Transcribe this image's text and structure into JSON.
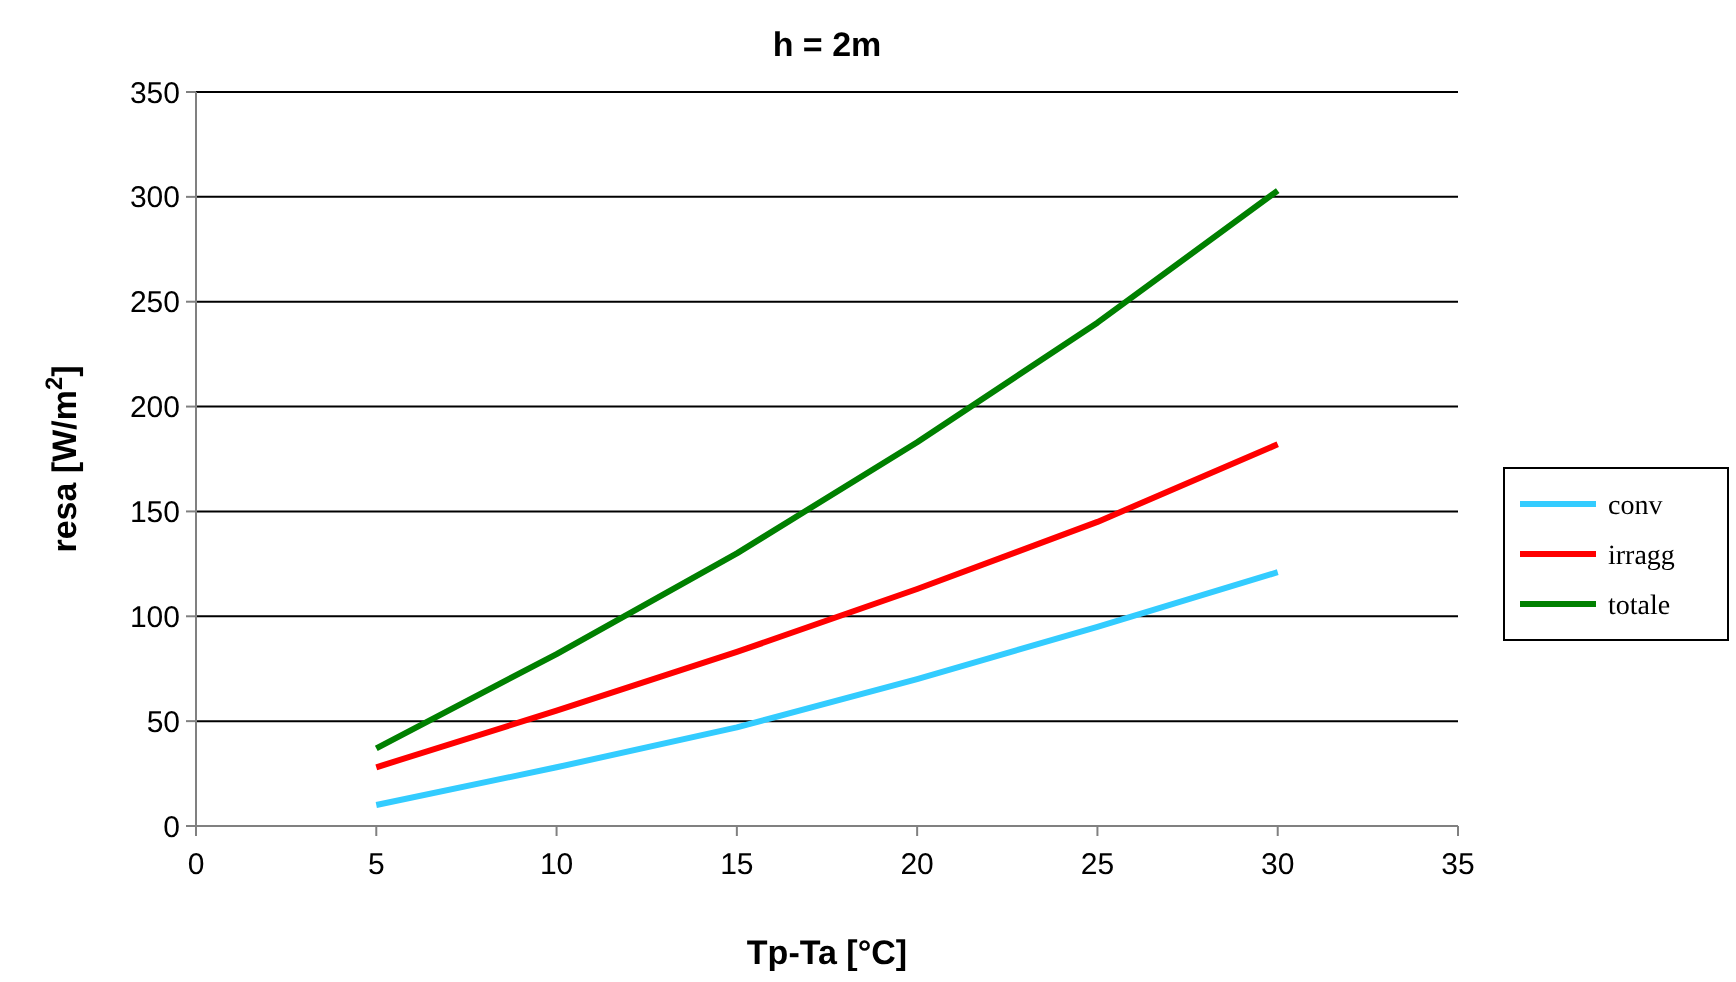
{
  "chart_data": {
    "type": "line",
    "title": "h = 2m",
    "xlabel": "Tp-Ta [°C]",
    "ylabel": "resa [W/m$^{2}$]",
    "x": [
      5,
      10,
      15,
      20,
      25,
      30
    ],
    "series": [
      {
        "name": "conv",
        "color": "#33ccff",
        "values": [
          10,
          28,
          47,
          70,
          95,
          121
        ]
      },
      {
        "name": "irragg",
        "color": "#ff0000",
        "values": [
          28,
          55,
          83,
          113,
          145,
          182
        ]
      },
      {
        "name": "totale",
        "color": "#008000",
        "values": [
          37,
          82,
          130,
          183,
          240,
          303
        ]
      }
    ],
    "xlim": [
      0,
      35
    ],
    "xticks": [
      0,
      5,
      10,
      15,
      20,
      25,
      30,
      35
    ],
    "ylim": [
      0,
      350
    ],
    "yticks": [
      0,
      50,
      100,
      150,
      200,
      250,
      300,
      350
    ],
    "grid": "y",
    "legend": "right",
    "marker": "none",
    "line_style": "solid"
  }
}
